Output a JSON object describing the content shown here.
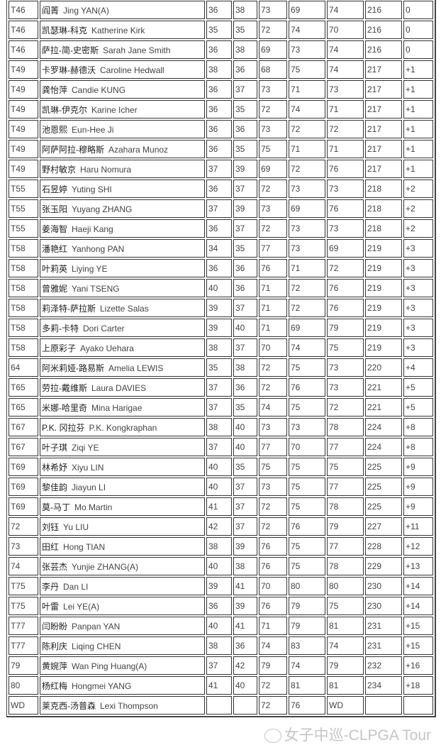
{
  "rows": [
    [
      "T46",
      "阎菁",
      "Jing YAN(A)",
      "36",
      "38",
      "73",
      "69",
      "74",
      "216",
      "0"
    ],
    [
      "T46",
      "凯瑟琳-科克",
      "Katherine Kirk",
      "35",
      "35",
      "72",
      "74",
      "70",
      "216",
      "0"
    ],
    [
      "T46",
      "萨拉-简-史密斯",
      "Sarah Jane Smith",
      "36",
      "38",
      "69",
      "73",
      "74",
      "216",
      "0"
    ],
    [
      "T49",
      "卡罗琳-赫德沃",
      "Caroline Hedwall",
      "38",
      "36",
      "68",
      "75",
      "74",
      "217",
      "+1"
    ],
    [
      "T49",
      "龚怡萍",
      "Candie KUNG",
      "36",
      "37",
      "73",
      "71",
      "73",
      "217",
      "+1"
    ],
    [
      "T49",
      "凯琳-伊克尔",
      "Karine Icher",
      "36",
      "35",
      "72",
      "74",
      "71",
      "217",
      "+1"
    ],
    [
      "T49",
      "池恩熙",
      "Eun-Hee Ji",
      "36",
      "36",
      "73",
      "72",
      "72",
      "217",
      "+1"
    ],
    [
      "T49",
      "阿萨阿拉-穆略斯",
      "Azahara Munoz",
      "36",
      "35",
      "75",
      "71",
      "71",
      "217",
      "+1"
    ],
    [
      "T49",
      "野村敏京",
      "Haru Nomura",
      "37",
      "39",
      "69",
      "72",
      "76",
      "217",
      "+1"
    ],
    [
      "T55",
      "石昱婷",
      "Yuting SHI",
      "36",
      "37",
      "72",
      "73",
      "73",
      "218",
      "+2"
    ],
    [
      "T55",
      "张玉阳",
      "Yuyang ZHANG",
      "37",
      "39",
      "73",
      "69",
      "76",
      "218",
      "+2"
    ],
    [
      "T55",
      "姜海智",
      "Haeji Kang",
      "36",
      "37",
      "72",
      "73",
      "73",
      "218",
      "+2"
    ],
    [
      "T58",
      "潘艳红",
      "Yanhong PAN",
      "34",
      "35",
      "77",
      "73",
      "69",
      "219",
      "+3"
    ],
    [
      "T58",
      "叶莉英",
      "Liying YE",
      "36",
      "36",
      "76",
      "71",
      "72",
      "219",
      "+3"
    ],
    [
      "T58",
      "曾雅妮",
      "Yani TSENG",
      "40",
      "36",
      "71",
      "72",
      "76",
      "219",
      "+3"
    ],
    [
      "T58",
      "莉泽特-萨拉斯",
      "Lizette Salas",
      "39",
      "37",
      "71",
      "72",
      "76",
      "219",
      "+3"
    ],
    [
      "T58",
      "多莉-卡特",
      "Dori Carter",
      "39",
      "40",
      "71",
      "69",
      "79",
      "219",
      "+3"
    ],
    [
      "T58",
      "上原彩子",
      "Ayako Uehara",
      "38",
      "37",
      "70",
      "74",
      "75",
      "219",
      "+3"
    ],
    [
      "64",
      "阿米莉娅-路易斯",
      "Amelia LEWIS",
      "35",
      "38",
      "72",
      "75",
      "73",
      "220",
      "+4"
    ],
    [
      "T65",
      "劳拉-戴维斯",
      "Laura DAVIES",
      "37",
      "36",
      "72",
      "76",
      "73",
      "221",
      "+5"
    ],
    [
      "T65",
      "米娜-哈里奇",
      "Mina Harigae",
      "37",
      "35",
      "74",
      "75",
      "72",
      "221",
      "+5"
    ],
    [
      "T67",
      "P.K. 冈拉芬",
      "P.K. Kongkraphan",
      "38",
      "40",
      "73",
      "73",
      "78",
      "224",
      "+8"
    ],
    [
      "T67",
      "叶子琪",
      "Ziqi YE",
      "37",
      "40",
      "77",
      "70",
      "77",
      "224",
      "+8"
    ],
    [
      "T69",
      "林希妤",
      "Xiyu LIN",
      "40",
      "35",
      "75",
      "75",
      "75",
      "225",
      "+9"
    ],
    [
      "T69",
      "黎佳韵",
      "Jiayun LI",
      "40",
      "37",
      "73",
      "75",
      "77",
      "225",
      "+9"
    ],
    [
      "T69",
      "莫-马丁",
      "Mo Martin",
      "41",
      "37",
      "72",
      "75",
      "78",
      "225",
      "+9"
    ],
    [
      "72",
      "刘钰",
      "Yu LIU",
      "42",
      "37",
      "72",
      "76",
      "79",
      "227",
      "+11"
    ],
    [
      "73",
      "田红",
      "Hong TIAN",
      "38",
      "39",
      "76",
      "75",
      "77",
      "228",
      "+12"
    ],
    [
      "74",
      "张芸杰",
      "Yunjie ZHANG(A)",
      "40",
      "38",
      "76",
      "75",
      "78",
      "229",
      "+13"
    ],
    [
      "T75",
      "李丹",
      "Dan LI",
      "39",
      "41",
      "70",
      "80",
      "80",
      "230",
      "+14"
    ],
    [
      "T75",
      "叶雷",
      "Lei YE(A)",
      "36",
      "39",
      "76",
      "79",
      "75",
      "230",
      "+14"
    ],
    [
      "T77",
      "闫盼盼",
      "Panpan YAN",
      "40",
      "41",
      "71",
      "79",
      "81",
      "231",
      "+15"
    ],
    [
      "T77",
      "陈利庆",
      "Liqing CHEN",
      "38",
      "36",
      "74",
      "83",
      "74",
      "231",
      "+15"
    ],
    [
      "79",
      "黄婉萍",
      "Wan Ping Huang(A)",
      "37",
      "42",
      "79",
      "74",
      "79",
      "232",
      "+16"
    ],
    [
      "80",
      "杨红梅",
      "Hongmei YANG",
      "41",
      "40",
      "72",
      "81",
      "81",
      "234",
      "+18"
    ],
    [
      "WD",
      "莱克西-汤普森",
      "Lexi Thompson",
      "",
      "",
      "72",
      "76",
      "WD",
      "",
      ""
    ]
  ],
  "watermark": {
    "text": "女子中巡-CLPGA Tour",
    "icon": "wechat-icon"
  }
}
